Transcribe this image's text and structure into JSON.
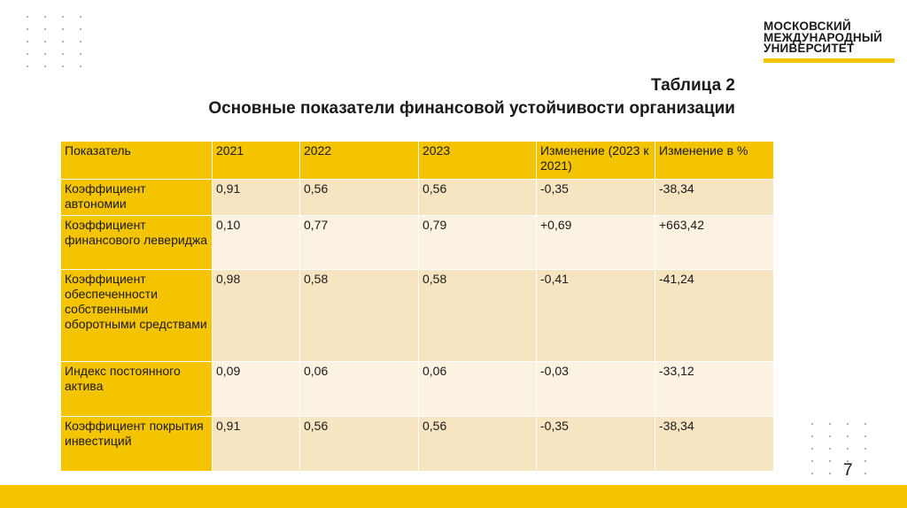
{
  "logo": {
    "line1": "МОСКОВСКИЙ",
    "line2": "МЕЖДУНАРОДНЫЙ",
    "line3": "УНИВЕРСИТЕТ"
  },
  "title": {
    "line1": "Таблица 2",
    "line2": "Основные показатели финансовой устойчивости организации"
  },
  "table": {
    "headers": [
      "Показатель",
      "2021",
      "2022",
      "2023",
      "Изменение (2023 к 2021)",
      "Изменение в %"
    ],
    "rows": [
      [
        "Коэффициент автономии",
        "0,91",
        "0,56",
        "0,56",
        "-0,35",
        "-38,34"
      ],
      [
        "Коэффициент финансового левериджа",
        "0,10",
        "0,77",
        "0,79",
        "+0,69",
        "+663,42"
      ],
      [
        "Коэффициент обеспеченности собственными оборотными средствами",
        "0,98",
        "0,58",
        "0,58",
        "-0,41",
        "-41,24"
      ],
      [
        "Индекс постоянного актива",
        "0,09",
        "0,06",
        "0,06",
        "-0,03",
        "-33,12"
      ],
      [
        "Коэффициент покрытия инвестиций",
        "0,91",
        "0,56",
        "0,56",
        "-0,35",
        "-38,34"
      ]
    ]
  },
  "page_number": "7",
  "colors": {
    "accent": "#f5c400",
    "row_odd": "#f7e4c1",
    "row_even": "#fbf2e1"
  }
}
